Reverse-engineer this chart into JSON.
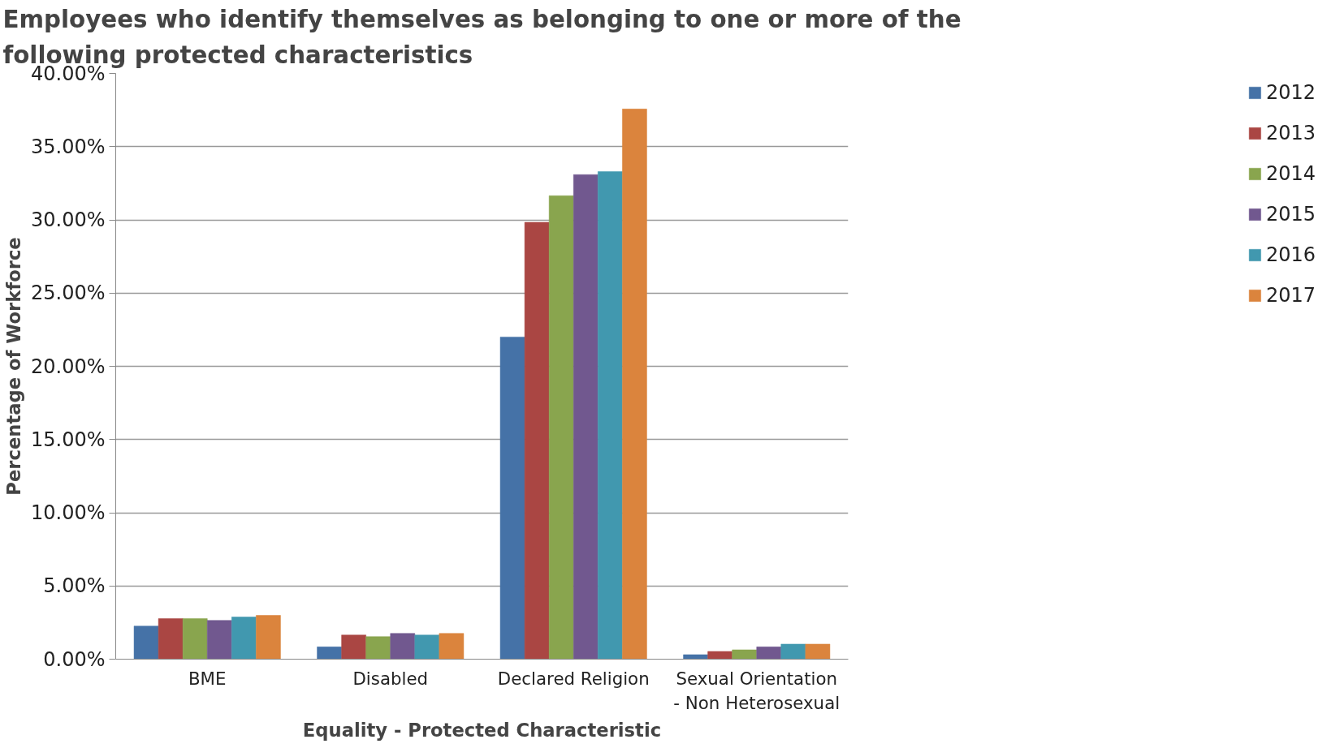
{
  "chart_data": {
    "type": "bar",
    "title": "Employees who identify themselves as belonging to one or more of the following protected characteristics",
    "xlabel": "Equality - Protected Characteristic",
    "ylabel": "Percentage of Workforce",
    "categories": [
      "BME",
      "Disabled",
      "Declared Religion",
      "Sexual Orientation - Non Heterosexual"
    ],
    "series": [
      {
        "name": "2012",
        "color": "#4572a7",
        "values": [
          2.26,
          0.84,
          22.0,
          0.31
        ]
      },
      {
        "name": "2013",
        "color": "#aa4643",
        "values": [
          2.77,
          1.65,
          29.83,
          0.53
        ]
      },
      {
        "name": "2014",
        "color": "#89a54e",
        "values": [
          2.77,
          1.54,
          31.65,
          0.64
        ]
      },
      {
        "name": "2015",
        "color": "#71588f",
        "values": [
          2.65,
          1.76,
          33.09,
          0.84
        ]
      },
      {
        "name": "2016",
        "color": "#4198af",
        "values": [
          2.88,
          1.65,
          33.3,
          1.03
        ]
      },
      {
        "name": "2017",
        "color": "#db843d",
        "values": [
          2.99,
          1.76,
          37.57,
          1.03
        ]
      }
    ],
    "ylim": [
      0,
      40
    ],
    "yticks": [
      {
        "value": 0,
        "label": "0.00%"
      },
      {
        "value": 5,
        "label": "5.00%"
      },
      {
        "value": 10,
        "label": "10.00%"
      },
      {
        "value": 15,
        "label": "15.00%"
      },
      {
        "value": 20,
        "label": "20.00%"
      },
      {
        "value": 25,
        "label": "25.00%"
      },
      {
        "value": 30,
        "label": "30.00%"
      },
      {
        "value": 35,
        "label": "35.00%"
      },
      {
        "value": 40,
        "label": "40.00%"
      }
    ],
    "grid": "y",
    "legend": "right"
  }
}
